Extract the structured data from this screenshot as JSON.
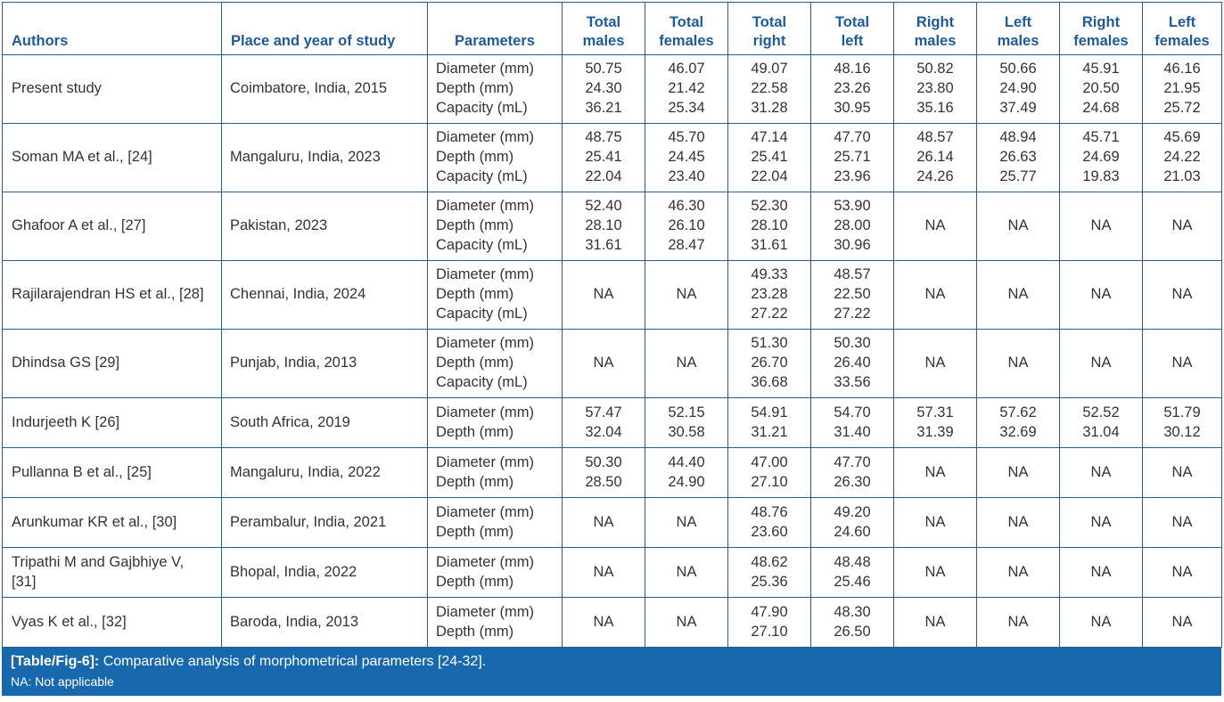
{
  "headers": [
    "Authors",
    "Place and year of study",
    "Parameters",
    [
      "Total",
      "males"
    ],
    [
      "Total",
      "females"
    ],
    [
      "Total",
      "right"
    ],
    [
      "Total",
      "left"
    ],
    [
      "Right",
      "males"
    ],
    [
      "Left",
      "males"
    ],
    [
      "Right",
      "females"
    ],
    [
      "Left",
      "females"
    ]
  ],
  "rows": [
    {
      "author": [
        "Present study"
      ],
      "place": "Coimbatore, India, 2015",
      "params": [
        "Diameter (mm)",
        "Depth (mm)",
        "Capacity (mL)"
      ],
      "values": [
        [
          "50.75",
          "24.30",
          "36.21"
        ],
        [
          "46.07",
          "21.42",
          "25.34"
        ],
        [
          "49.07",
          "22.58",
          "31.28"
        ],
        [
          "48.16",
          "23.26",
          "30.95"
        ],
        [
          "50.82",
          "23.80",
          "35.16"
        ],
        [
          "50.66",
          "24.90",
          "37.49"
        ],
        [
          "45.91",
          "20.50",
          "24.68"
        ],
        [
          "46.16",
          "21.95",
          "25.72"
        ]
      ]
    },
    {
      "author": [
        "Soman MA et al., [24]"
      ],
      "place": "Mangaluru, India, 2023",
      "params": [
        "Diameter (mm)",
        "Depth (mm)",
        "Capacity (mL)"
      ],
      "values": [
        [
          "48.75",
          "25.41",
          "22.04"
        ],
        [
          "45.70",
          "24.45",
          "23.40"
        ],
        [
          "47.14",
          "25.41",
          "22.04"
        ],
        [
          "47.70",
          "25.71",
          "23.96"
        ],
        [
          "48.57",
          "26.14",
          "24.26"
        ],
        [
          "48.94",
          "26.63",
          "25.77"
        ],
        [
          "45.71",
          "24.69",
          "19.83"
        ],
        [
          "45.69",
          "24.22",
          "21.03"
        ]
      ]
    },
    {
      "author": [
        "Ghafoor A et al., [27]"
      ],
      "place": "Pakistan, 2023",
      "params": [
        "Diameter (mm)",
        "Depth (mm)",
        "Capacity (mL)"
      ],
      "values": [
        [
          "52.40",
          "28.10",
          "31.61"
        ],
        [
          "46.30",
          "26.10",
          "28.47"
        ],
        [
          "52.30",
          "28.10",
          "31.61"
        ],
        [
          "53.90",
          "28.00",
          "30.96"
        ],
        [
          "NA"
        ],
        [
          "NA"
        ],
        [
          "NA"
        ],
        [
          "NA"
        ]
      ]
    },
    {
      "author": [
        "Rajilarajendran HS et al., [28]"
      ],
      "place": "Chennai, India, 2024",
      "params": [
        "Diameter (mm)",
        "Depth (mm)",
        "Capacity (mL)"
      ],
      "values": [
        [
          "NA"
        ],
        [
          "NA"
        ],
        [
          "49.33",
          "23.28",
          "27.22"
        ],
        [
          "48.57",
          "22.50",
          "27.22"
        ],
        [
          "NA"
        ],
        [
          "NA"
        ],
        [
          "NA"
        ],
        [
          "NA"
        ]
      ]
    },
    {
      "author": [
        "Dhindsa GS [29]"
      ],
      "place": "Punjab, India, 2013",
      "params": [
        "Diameter (mm)",
        "Depth (mm)",
        "Capacity (mL)"
      ],
      "values": [
        [
          "NA"
        ],
        [
          "NA"
        ],
        [
          "51.30",
          "26.70",
          "36.68"
        ],
        [
          "50.30",
          "26.40",
          "33.56"
        ],
        [
          "NA"
        ],
        [
          "NA"
        ],
        [
          "NA"
        ],
        [
          "NA"
        ]
      ]
    },
    {
      "author": [
        "Indurjeeth K [26]"
      ],
      "place": "South Africa, 2019",
      "params": [
        "Diameter (mm)",
        "Depth (mm)"
      ],
      "values": [
        [
          "57.47",
          "32.04"
        ],
        [
          "52.15",
          "30.58"
        ],
        [
          "54.91",
          "31.21"
        ],
        [
          "54.70",
          "31.40"
        ],
        [
          "57.31",
          "31.39"
        ],
        [
          "57.62",
          "32.69"
        ],
        [
          "52.52",
          "31.04"
        ],
        [
          "51.79",
          "30.12"
        ]
      ]
    },
    {
      "author": [
        "Pullanna B et al., [25]"
      ],
      "place": "Mangaluru, India, 2022",
      "params": [
        "Diameter (mm)",
        "Depth (mm)"
      ],
      "values": [
        [
          "50.30",
          "28.50"
        ],
        [
          "44.40",
          "24.90"
        ],
        [
          "47.00",
          "27.10"
        ],
        [
          "47.70",
          "26.30"
        ],
        [
          "NA"
        ],
        [
          "NA"
        ],
        [
          "NA"
        ],
        [
          "NA"
        ]
      ]
    },
    {
      "author": [
        "Arunkumar KR et al., [30]"
      ],
      "place": "Perambalur, India, 2021",
      "params": [
        "Diameter (mm)",
        "Depth (mm)"
      ],
      "values": [
        [
          "NA"
        ],
        [
          "NA"
        ],
        [
          "48.76",
          "23.60"
        ],
        [
          "49.20",
          "24.60"
        ],
        [
          "NA"
        ],
        [
          "NA"
        ],
        [
          "NA"
        ],
        [
          "NA"
        ]
      ]
    },
    {
      "author": [
        "Tripathi M and Gajbhiye V,",
        "[31]"
      ],
      "place": "Bhopal, India, 2022",
      "params": [
        "Diameter (mm)",
        "Depth (mm)"
      ],
      "values": [
        [
          "NA"
        ],
        [
          "NA"
        ],
        [
          "48.62",
          "25.36"
        ],
        [
          "48.48",
          "25.46"
        ],
        [
          "NA"
        ],
        [
          "NA"
        ],
        [
          "NA"
        ],
        [
          "NA"
        ]
      ]
    },
    {
      "author": [
        "Vyas K et al., [32]"
      ],
      "place": "Baroda, India, 2013",
      "params": [
        "Diameter (mm)",
        "Depth (mm)"
      ],
      "values": [
        [
          "NA"
        ],
        [
          "NA"
        ],
        [
          "47.90",
          "27.10"
        ],
        [
          "48.30",
          "26.50"
        ],
        [
          "NA"
        ],
        [
          "NA"
        ],
        [
          "NA"
        ],
        [
          "NA"
        ]
      ]
    }
  ],
  "caption": {
    "label": "[Table/Fig-6]:",
    "text": " Comparative analysis of morphometrical parameters [24-32].",
    "note": "NA: Not applicable"
  },
  "colors": {
    "header_text": "#1f5a99",
    "border": "#2b5c8f",
    "caption_bg": "#1868ad",
    "caption_text": "#ffffff",
    "body_text": "#333333"
  }
}
